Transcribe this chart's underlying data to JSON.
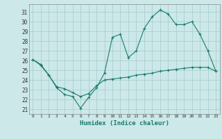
{
  "title": "",
  "xlabel": "Humidex (Indice chaleur)",
  "ylabel": "",
  "bg_color": "#cce8e8",
  "grid_color": "#aad0d0",
  "line_color": "#1a7a6e",
  "xlim": [
    -0.5,
    23.5
  ],
  "ylim": [
    20.5,
    31.8
  ],
  "yticks": [
    21,
    22,
    23,
    24,
    25,
    26,
    27,
    28,
    29,
    30,
    31
  ],
  "xticks": [
    0,
    1,
    2,
    3,
    4,
    5,
    6,
    7,
    8,
    9,
    10,
    11,
    12,
    13,
    14,
    15,
    16,
    17,
    18,
    19,
    20,
    21,
    22,
    23
  ],
  "line1_x": [
    0,
    1,
    2,
    3,
    4,
    5,
    6,
    7,
    8,
    9,
    10,
    11,
    12,
    13,
    14,
    15,
    16,
    17,
    18,
    19,
    20,
    21,
    22,
    23
  ],
  "line1_y": [
    26.1,
    25.5,
    24.5,
    23.2,
    22.5,
    22.3,
    21.1,
    22.2,
    23.2,
    24.7,
    28.4,
    28.7,
    26.3,
    27.0,
    29.3,
    30.5,
    31.2,
    30.8,
    29.7,
    29.7,
    30.0,
    28.7,
    27.0,
    24.9
  ],
  "line2_x": [
    0,
    1,
    2,
    3,
    4,
    5,
    6,
    7,
    8,
    9,
    10,
    11,
    12,
    13,
    14,
    15,
    16,
    17,
    18,
    19,
    20,
    21,
    22,
    23
  ],
  "line2_y": [
    26.1,
    25.6,
    24.5,
    23.3,
    23.1,
    22.7,
    22.3,
    22.6,
    23.4,
    24.0,
    24.1,
    24.2,
    24.3,
    24.5,
    24.6,
    24.7,
    24.9,
    25.0,
    25.1,
    25.2,
    25.3,
    25.3,
    25.3,
    24.9
  ]
}
